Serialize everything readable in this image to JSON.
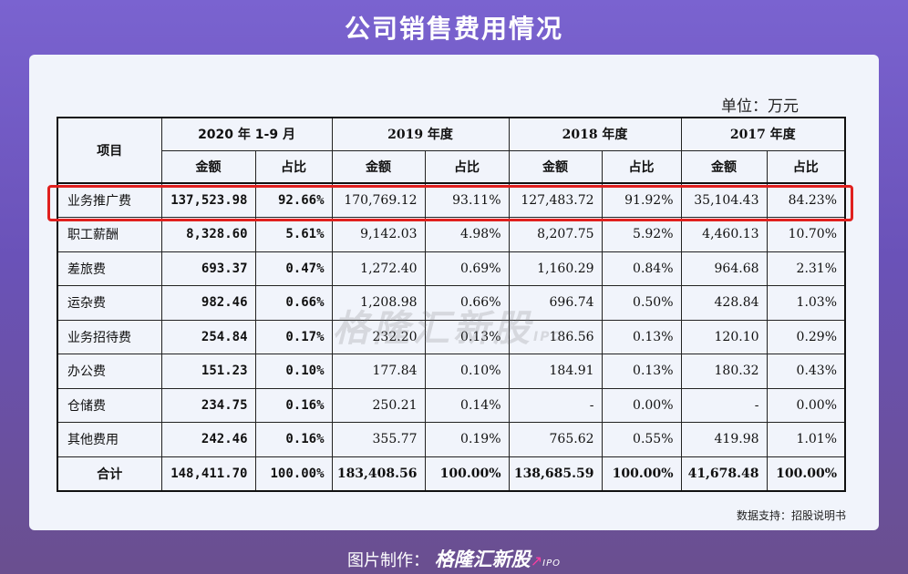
{
  "title": "公司销售费用情况",
  "unit": "单位：万元",
  "watermark": {
    "brand": "格隆汇新股",
    "suffix": "IPO"
  },
  "table": {
    "item_header": "项目",
    "periods": [
      "2020 年 1-9 月",
      "2019 年度",
      "2018 年度",
      "2017 年度"
    ],
    "subheaders": [
      "金额",
      "占比",
      "金额",
      "占比",
      "金额",
      "占比",
      "金额",
      "占比"
    ],
    "rows": [
      {
        "item": "业务推广费",
        "values": [
          "137,523.98",
          "92.66%",
          "170,769.12",
          "93.11%",
          "127,483.72",
          "91.92%",
          "35,104.43",
          "84.23%"
        ]
      },
      {
        "item": "职工薪酬",
        "values": [
          "8,328.60",
          "5.61%",
          "9,142.03",
          "4.98%",
          "8,207.75",
          "5.92%",
          "4,460.13",
          "10.70%"
        ]
      },
      {
        "item": "差旅费",
        "values": [
          "693.37",
          "0.47%",
          "1,272.40",
          "0.69%",
          "1,160.29",
          "0.84%",
          "964.68",
          "2.31%"
        ]
      },
      {
        "item": "运杂费",
        "values": [
          "982.46",
          "0.66%",
          "1,208.98",
          "0.66%",
          "696.74",
          "0.50%",
          "428.84",
          "1.03%"
        ]
      },
      {
        "item": "业务招待费",
        "values": [
          "254.84",
          "0.17%",
          "232.20",
          "0.13%",
          "186.56",
          "0.13%",
          "120.10",
          "0.29%"
        ]
      },
      {
        "item": "办公费",
        "values": [
          "151.23",
          "0.10%",
          "177.84",
          "0.10%",
          "184.91",
          "0.13%",
          "180.32",
          "0.43%"
        ]
      },
      {
        "item": "仓储费",
        "values": [
          "234.75",
          "0.16%",
          "250.21",
          "0.14%",
          "-",
          "0.00%",
          "-",
          "0.00%"
        ]
      },
      {
        "item": "其他费用",
        "values": [
          "242.46",
          "0.16%",
          "355.77",
          "0.19%",
          "765.62",
          "0.55%",
          "419.98",
          "1.01%"
        ]
      },
      {
        "item": "合计",
        "values": [
          "148,411.70",
          "100.00%",
          "183,408.56",
          "100.00%",
          "138,685.59",
          "100.00%",
          "41,678.48",
          "100.00%"
        ]
      }
    ]
  },
  "source": "数据支持：招股说明书",
  "footer": {
    "prefix": "图片制作：",
    "brand": "格隆汇新股",
    "suffix": "IPO"
  },
  "colors": {
    "highlight": "#e0201e",
    "background": "#7a63d0"
  }
}
